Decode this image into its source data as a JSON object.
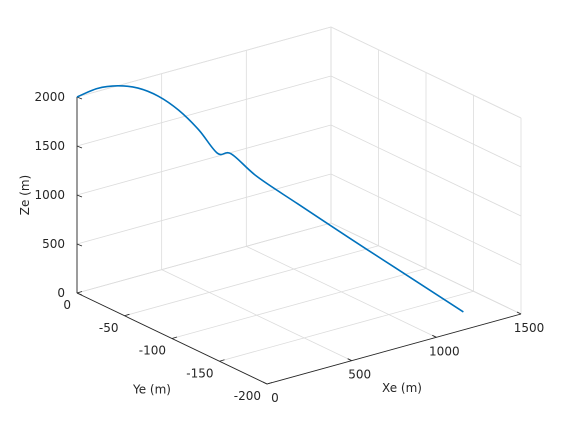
{
  "chart_data": {
    "type": "line3d",
    "title": "",
    "xlabel": "Xe (m)",
    "ylabel": "Ye (m)",
    "zlabel": "Ze (m)",
    "xlim": [
      0,
      1500
    ],
    "ylim": [
      -200,
      0
    ],
    "zlim": [
      0,
      2000
    ],
    "x_ticks": [
      0,
      500,
      1000,
      1500
    ],
    "y_ticks": [
      0,
      -50,
      -100,
      -150,
      -200
    ],
    "z_ticks": [
      0,
      500,
      1000,
      1500,
      2000
    ],
    "x_tick_labels": [
      "0",
      "500",
      "1000",
      "1500"
    ],
    "y_tick_labels": [
      "0",
      "-50",
      "-100",
      "-150",
      "-200"
    ],
    "z_tick_labels": [
      "0",
      "500",
      "1000",
      "1500",
      "2000"
    ],
    "grid": true,
    "colors": {
      "line": "#0072BD",
      "axis": "#262626",
      "grid": "#dcdcdc"
    },
    "series": [
      {
        "x": [
          0,
          120,
          240,
          360,
          480,
          600,
          720,
          830,
          900,
          980,
          1050,
          1130,
          1200,
          1300
        ],
        "y": [
          0,
          0,
          0,
          0,
          0,
          0,
          0,
          0,
          -2,
          -15,
          -45,
          -85,
          -120,
          -175
        ],
        "z": [
          2000,
          2030,
          2000,
          1920,
          1780,
          1580,
          1320,
          1030,
          1000,
          790,
          620,
          420,
          250,
          0
        ]
      }
    ]
  }
}
